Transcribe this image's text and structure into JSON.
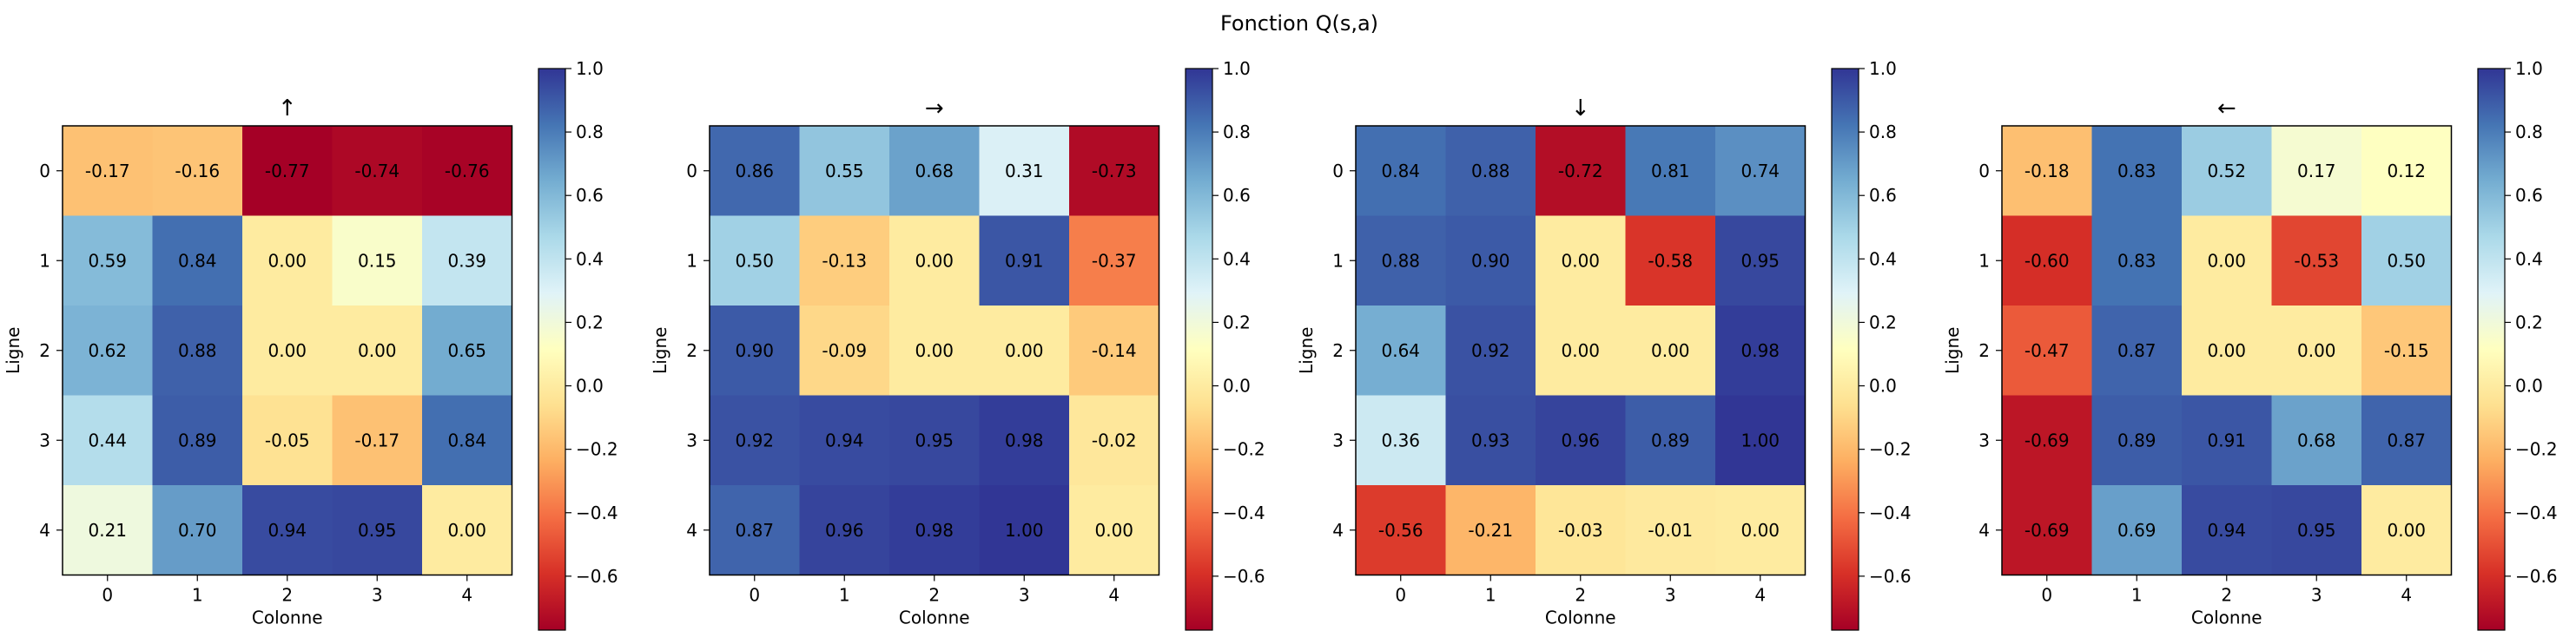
{
  "chart_data": {
    "type": "heatmap",
    "title": "Fonction Q(s,a)",
    "xlabel": "Colonne",
    "ylabel": "Ligne",
    "x_ticks": [
      "0",
      "1",
      "2",
      "3",
      "4"
    ],
    "y_ticks": [
      "0",
      "1",
      "2",
      "3",
      "4"
    ],
    "colormap": "RdYlBu",
    "colorbar_range": [
      -0.77,
      1.0
    ],
    "colorbar_ticks": [
      "−0.6",
      "−0.4",
      "−0.2",
      "0.0",
      "0.2",
      "0.4",
      "0.6",
      "0.8",
      "1.0"
    ],
    "colorbar_tick_values": [
      -0.6,
      -0.4,
      -0.2,
      0.0,
      0.2,
      0.4,
      0.6,
      0.8,
      1.0
    ],
    "panels": [
      {
        "title": "↑",
        "values": [
          [
            -0.17,
            -0.16,
            -0.77,
            -0.74,
            -0.76
          ],
          [
            0.59,
            0.84,
            0.0,
            0.15,
            0.39
          ],
          [
            0.62,
            0.88,
            0.0,
            0.0,
            0.65
          ],
          [
            0.44,
            0.89,
            -0.05,
            -0.17,
            0.84
          ],
          [
            0.21,
            0.7,
            0.94,
            0.95,
            0.0
          ]
        ]
      },
      {
        "title": "→",
        "values": [
          [
            0.86,
            0.55,
            0.68,
            0.31,
            -0.73
          ],
          [
            0.5,
            -0.13,
            0.0,
            0.91,
            -0.37
          ],
          [
            0.9,
            -0.09,
            0.0,
            0.0,
            -0.14
          ],
          [
            0.92,
            0.94,
            0.95,
            0.98,
            -0.02
          ],
          [
            0.87,
            0.96,
            0.98,
            1.0,
            0.0
          ]
        ]
      },
      {
        "title": "↓",
        "values": [
          [
            0.84,
            0.88,
            -0.72,
            0.81,
            0.74
          ],
          [
            0.88,
            0.9,
            0.0,
            -0.58,
            0.95
          ],
          [
            0.64,
            0.92,
            0.0,
            0.0,
            0.98
          ],
          [
            0.36,
            0.93,
            0.96,
            0.89,
            1.0
          ],
          [
            -0.56,
            -0.21,
            -0.03,
            -0.01,
            0.0
          ]
        ]
      },
      {
        "title": "←",
        "values": [
          [
            -0.18,
            0.83,
            0.52,
            0.17,
            0.12
          ],
          [
            -0.6,
            0.83,
            0.0,
            -0.53,
            0.5
          ],
          [
            -0.47,
            0.87,
            0.0,
            0.0,
            -0.15
          ],
          [
            -0.69,
            0.89,
            0.91,
            0.68,
            0.87
          ],
          [
            -0.69,
            0.69,
            0.94,
            0.95,
            0.0
          ]
        ]
      }
    ]
  }
}
